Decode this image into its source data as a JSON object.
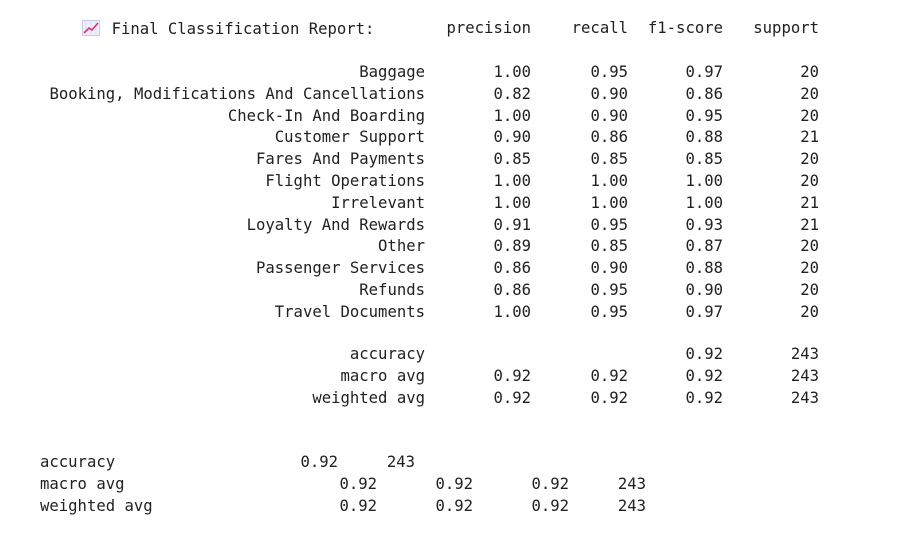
{
  "report_title": "Final Classification Report:",
  "icon": "chart-increasing-icon",
  "headers": [
    "precision",
    "recall",
    "f1-score",
    "support"
  ],
  "rows": [
    {
      "label": "Baggage",
      "precision": "1.00",
      "recall": "0.95",
      "f1": "0.97",
      "support": "20"
    },
    {
      "label": "Booking, Modifications And Cancellations",
      "precision": "0.82",
      "recall": "0.90",
      "f1": "0.86",
      "support": "20"
    },
    {
      "label": "Check-In And Boarding",
      "precision": "1.00",
      "recall": "0.90",
      "f1": "0.95",
      "support": "20"
    },
    {
      "label": "Customer Support",
      "precision": "0.90",
      "recall": "0.86",
      "f1": "0.88",
      "support": "21"
    },
    {
      "label": "Fares And Payments",
      "precision": "0.85",
      "recall": "0.85",
      "f1": "0.85",
      "support": "20"
    },
    {
      "label": "Flight Operations",
      "precision": "1.00",
      "recall": "1.00",
      "f1": "1.00",
      "support": "20"
    },
    {
      "label": "Irrelevant",
      "precision": "1.00",
      "recall": "1.00",
      "f1": "1.00",
      "support": "21"
    },
    {
      "label": "Loyalty And Rewards",
      "precision": "0.91",
      "recall": "0.95",
      "f1": "0.93",
      "support": "21"
    },
    {
      "label": "Other",
      "precision": "0.89",
      "recall": "0.85",
      "f1": "0.87",
      "support": "20"
    },
    {
      "label": "Passenger Services",
      "precision": "0.86",
      "recall": "0.90",
      "f1": "0.88",
      "support": "20"
    },
    {
      "label": "Refunds",
      "precision": "0.86",
      "recall": "0.95",
      "f1": "0.90",
      "support": "20"
    },
    {
      "label": "Travel Documents",
      "precision": "1.00",
      "recall": "0.95",
      "f1": "0.97",
      "support": "20"
    }
  ],
  "summary": [
    {
      "label": "accuracy",
      "precision": "",
      "recall": "",
      "f1": "0.92",
      "support": "243"
    },
    {
      "label": "macro avg",
      "precision": "0.92",
      "recall": "0.92",
      "f1": "0.92",
      "support": "243"
    },
    {
      "label": "weighted avg",
      "precision": "0.92",
      "recall": "0.92",
      "f1": "0.92",
      "support": "243"
    }
  ],
  "bottom_summary": [
    {
      "label": "accuracy",
      "values": [
        "0.92",
        "243"
      ]
    },
    {
      "label": "macro avg",
      "values": [
        "0.92",
        "0.92",
        "0.92",
        "243"
      ]
    },
    {
      "label": "weighted avg",
      "values": [
        "0.92",
        "0.92",
        "0.92",
        "243"
      ]
    }
  ]
}
